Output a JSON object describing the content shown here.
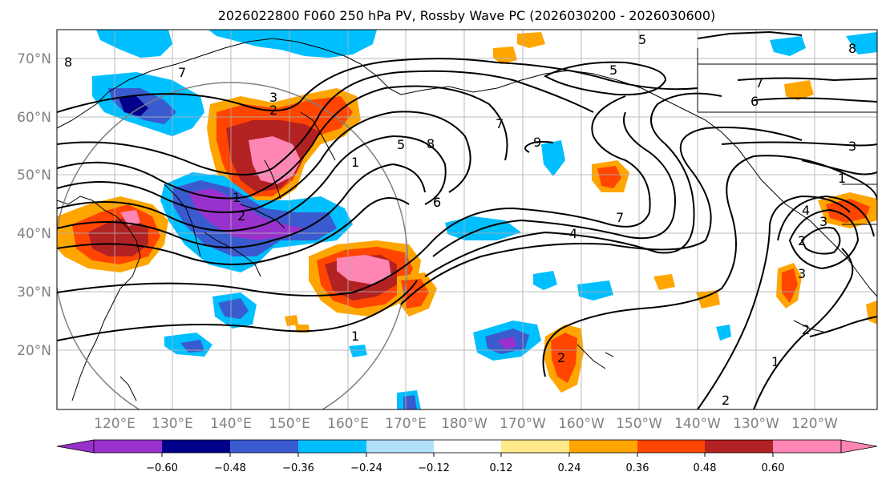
{
  "title": "2026022800 F060 250 hPa PV, Rossby Wave PC (2026030200 - 2026030600)",
  "colors": {
    "neg_060": "#9932cc",
    "neg_048": "#00008b",
    "neg_036": "#3a5bd0",
    "neg_024": "#00bfff",
    "neg_012": "#b0e0f8",
    "zero": "#ffffff",
    "pos_012": "#ffe98a",
    "pos_024": "#ffa500",
    "pos_036": "#ff4500",
    "pos_048": "#b22222",
    "pos_060": "#ff85b4",
    "grid": "#b0b0b0",
    "coast": "#000000",
    "contour": "#000000",
    "circle": "#808080",
    "axis_text": "#808080"
  },
  "lat_labels": [
    "70°N",
    "60°N",
    "50°N",
    "40°N",
    "30°N",
    "20°N"
  ],
  "lon_labels": [
    "120°E",
    "130°E",
    "140°E",
    "150°E",
    "160°E",
    "170°E",
    "180°W",
    "170°W",
    "160°W",
    "150°W",
    "140°W",
    "130°W",
    "120°W"
  ],
  "colorbar": {
    "tick_labels": [
      "−0.60",
      "−0.48",
      "−0.36",
      "−0.24",
      "−0.12",
      "0.12",
      "0.24",
      "0.36",
      "0.48",
      "0.60"
    ]
  },
  "contour_labels": [
    "8",
    "7",
    "3",
    "2",
    "1",
    "5",
    "6",
    "7",
    "8",
    "9",
    "5",
    "7",
    "6",
    "3",
    "6",
    "7",
    "4",
    "1",
    "1",
    "2",
    "4",
    "2",
    "3",
    "1",
    "2",
    "2",
    "5",
    "8",
    "1",
    "2",
    "3"
  ]
}
